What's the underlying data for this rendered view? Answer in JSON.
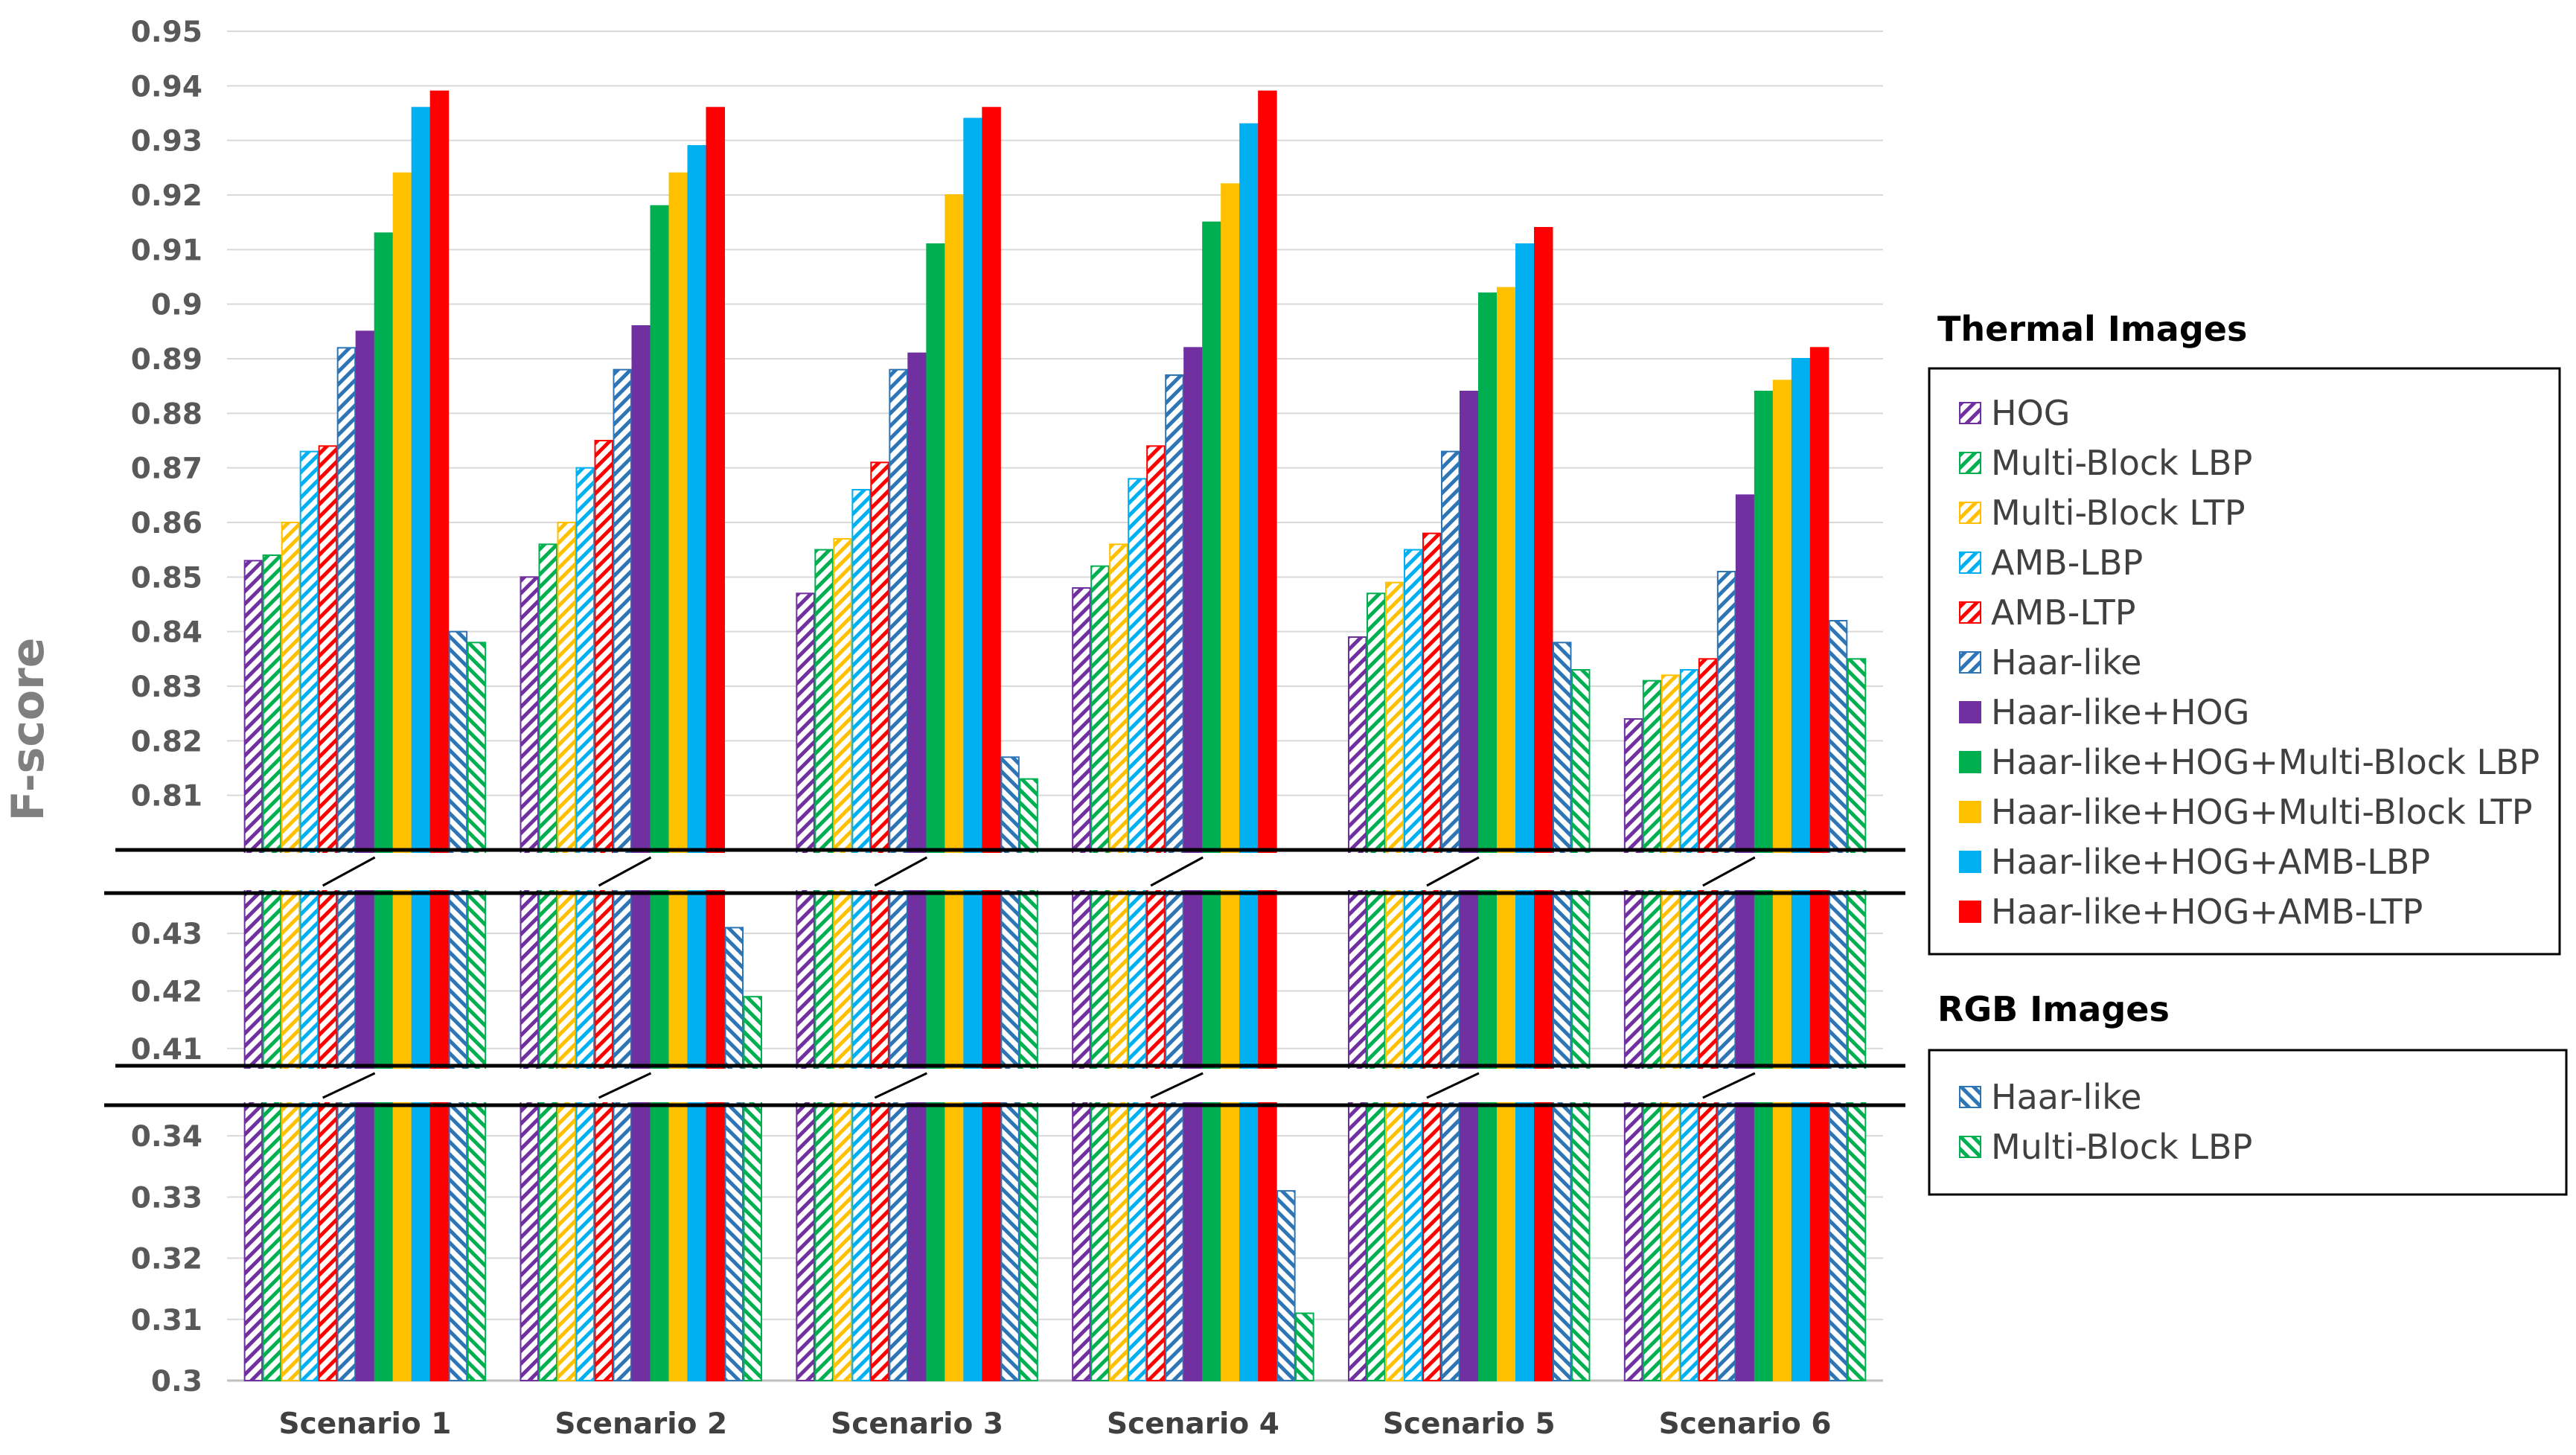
{
  "chart_data": {
    "type": "bar",
    "ylabel": "F-score",
    "xlabel": "",
    "title": "",
    "categories": [
      "Scenario 1",
      "Scenario 2",
      "Scenario 3",
      "Scenario 4",
      "Scenario 5",
      "Scenario 6"
    ],
    "axis_segments": [
      {
        "ylim": [
          0.3,
          0.345
        ],
        "ticks": [
          "0.3",
          "0.31",
          "0.32",
          "0.33",
          "0.34"
        ]
      },
      {
        "ylim": [
          0.407,
          0.437
        ],
        "ticks": [
          "0.41",
          "0.42",
          "0.43"
        ]
      },
      {
        "ylim": [
          0.8,
          0.95
        ],
        "ticks": [
          "0.81",
          "0.82",
          "0.83",
          "0.84",
          "0.85",
          "0.86",
          "0.87",
          "0.88",
          "0.89",
          "0.9",
          "0.91",
          "0.92",
          "0.93",
          "0.94",
          "0.95"
        ]
      }
    ],
    "legend_groups": [
      {
        "title": "Thermal Images",
        "series": [
          0,
          1,
          2,
          3,
          4,
          5,
          6,
          7,
          8,
          9,
          10
        ]
      },
      {
        "title": "RGB Images",
        "series": [
          11,
          12
        ]
      }
    ],
    "series": [
      {
        "name": "HOG",
        "color": "#7030A0",
        "pattern": "hatch-up",
        "values": [
          0.853,
          0.85,
          0.847,
          0.848,
          0.839,
          0.824
        ]
      },
      {
        "name": "Multi-Block LBP",
        "color": "#00B050",
        "pattern": "hatch-up",
        "values": [
          0.854,
          0.856,
          0.855,
          0.852,
          0.847,
          0.831
        ]
      },
      {
        "name": "Multi-Block LTP",
        "color": "#FFC000",
        "pattern": "hatch-up",
        "values": [
          0.86,
          0.86,
          0.857,
          0.856,
          0.849,
          0.832
        ]
      },
      {
        "name": "AMB-LBP",
        "color": "#00B0F0",
        "pattern": "hatch-up",
        "values": [
          0.873,
          0.87,
          0.866,
          0.868,
          0.855,
          0.833
        ]
      },
      {
        "name": "AMB-LTP",
        "color": "#FF0000",
        "pattern": "hatch-up",
        "values": [
          0.874,
          0.875,
          0.871,
          0.874,
          0.858,
          0.835
        ]
      },
      {
        "name": "Haar-like",
        "color": "#2E75B6",
        "pattern": "hatch-up",
        "values": [
          0.892,
          0.888,
          0.888,
          0.887,
          0.873,
          0.851
        ]
      },
      {
        "name": "Haar-like+HOG",
        "color": "#7030A0",
        "pattern": "solid",
        "values": [
          0.895,
          0.896,
          0.891,
          0.892,
          0.884,
          0.865
        ]
      },
      {
        "name": "Haar-like+HOG+Multi-Block LBP",
        "color": "#00B050",
        "pattern": "solid",
        "values": [
          0.913,
          0.918,
          0.911,
          0.915,
          0.902,
          0.884
        ]
      },
      {
        "name": "Haar-like+HOG+Multi-Block LTP",
        "color": "#FFC000",
        "pattern": "solid",
        "values": [
          0.924,
          0.924,
          0.92,
          0.922,
          0.903,
          0.886
        ]
      },
      {
        "name": "Haar-like+HOG+AMB-LBP",
        "color": "#00B0F0",
        "pattern": "solid",
        "values": [
          0.936,
          0.929,
          0.934,
          0.933,
          0.911,
          0.89
        ]
      },
      {
        "name": "Haar-like+HOG+AMB-LTP",
        "color": "#FF0000",
        "pattern": "solid",
        "values": [
          0.939,
          0.936,
          0.936,
          0.939,
          0.914,
          0.892
        ]
      },
      {
        "name": "Haar-like",
        "color": "#2E75B6",
        "pattern": "hatch-down",
        "values": [
          0.84,
          0.431,
          0.817,
          0.331,
          0.838,
          0.842
        ]
      },
      {
        "name": "Multi-Block LBP",
        "color": "#00B050",
        "pattern": "hatch-down",
        "values": [
          0.838,
          0.419,
          0.813,
          0.311,
          0.833,
          0.835
        ]
      }
    ]
  }
}
